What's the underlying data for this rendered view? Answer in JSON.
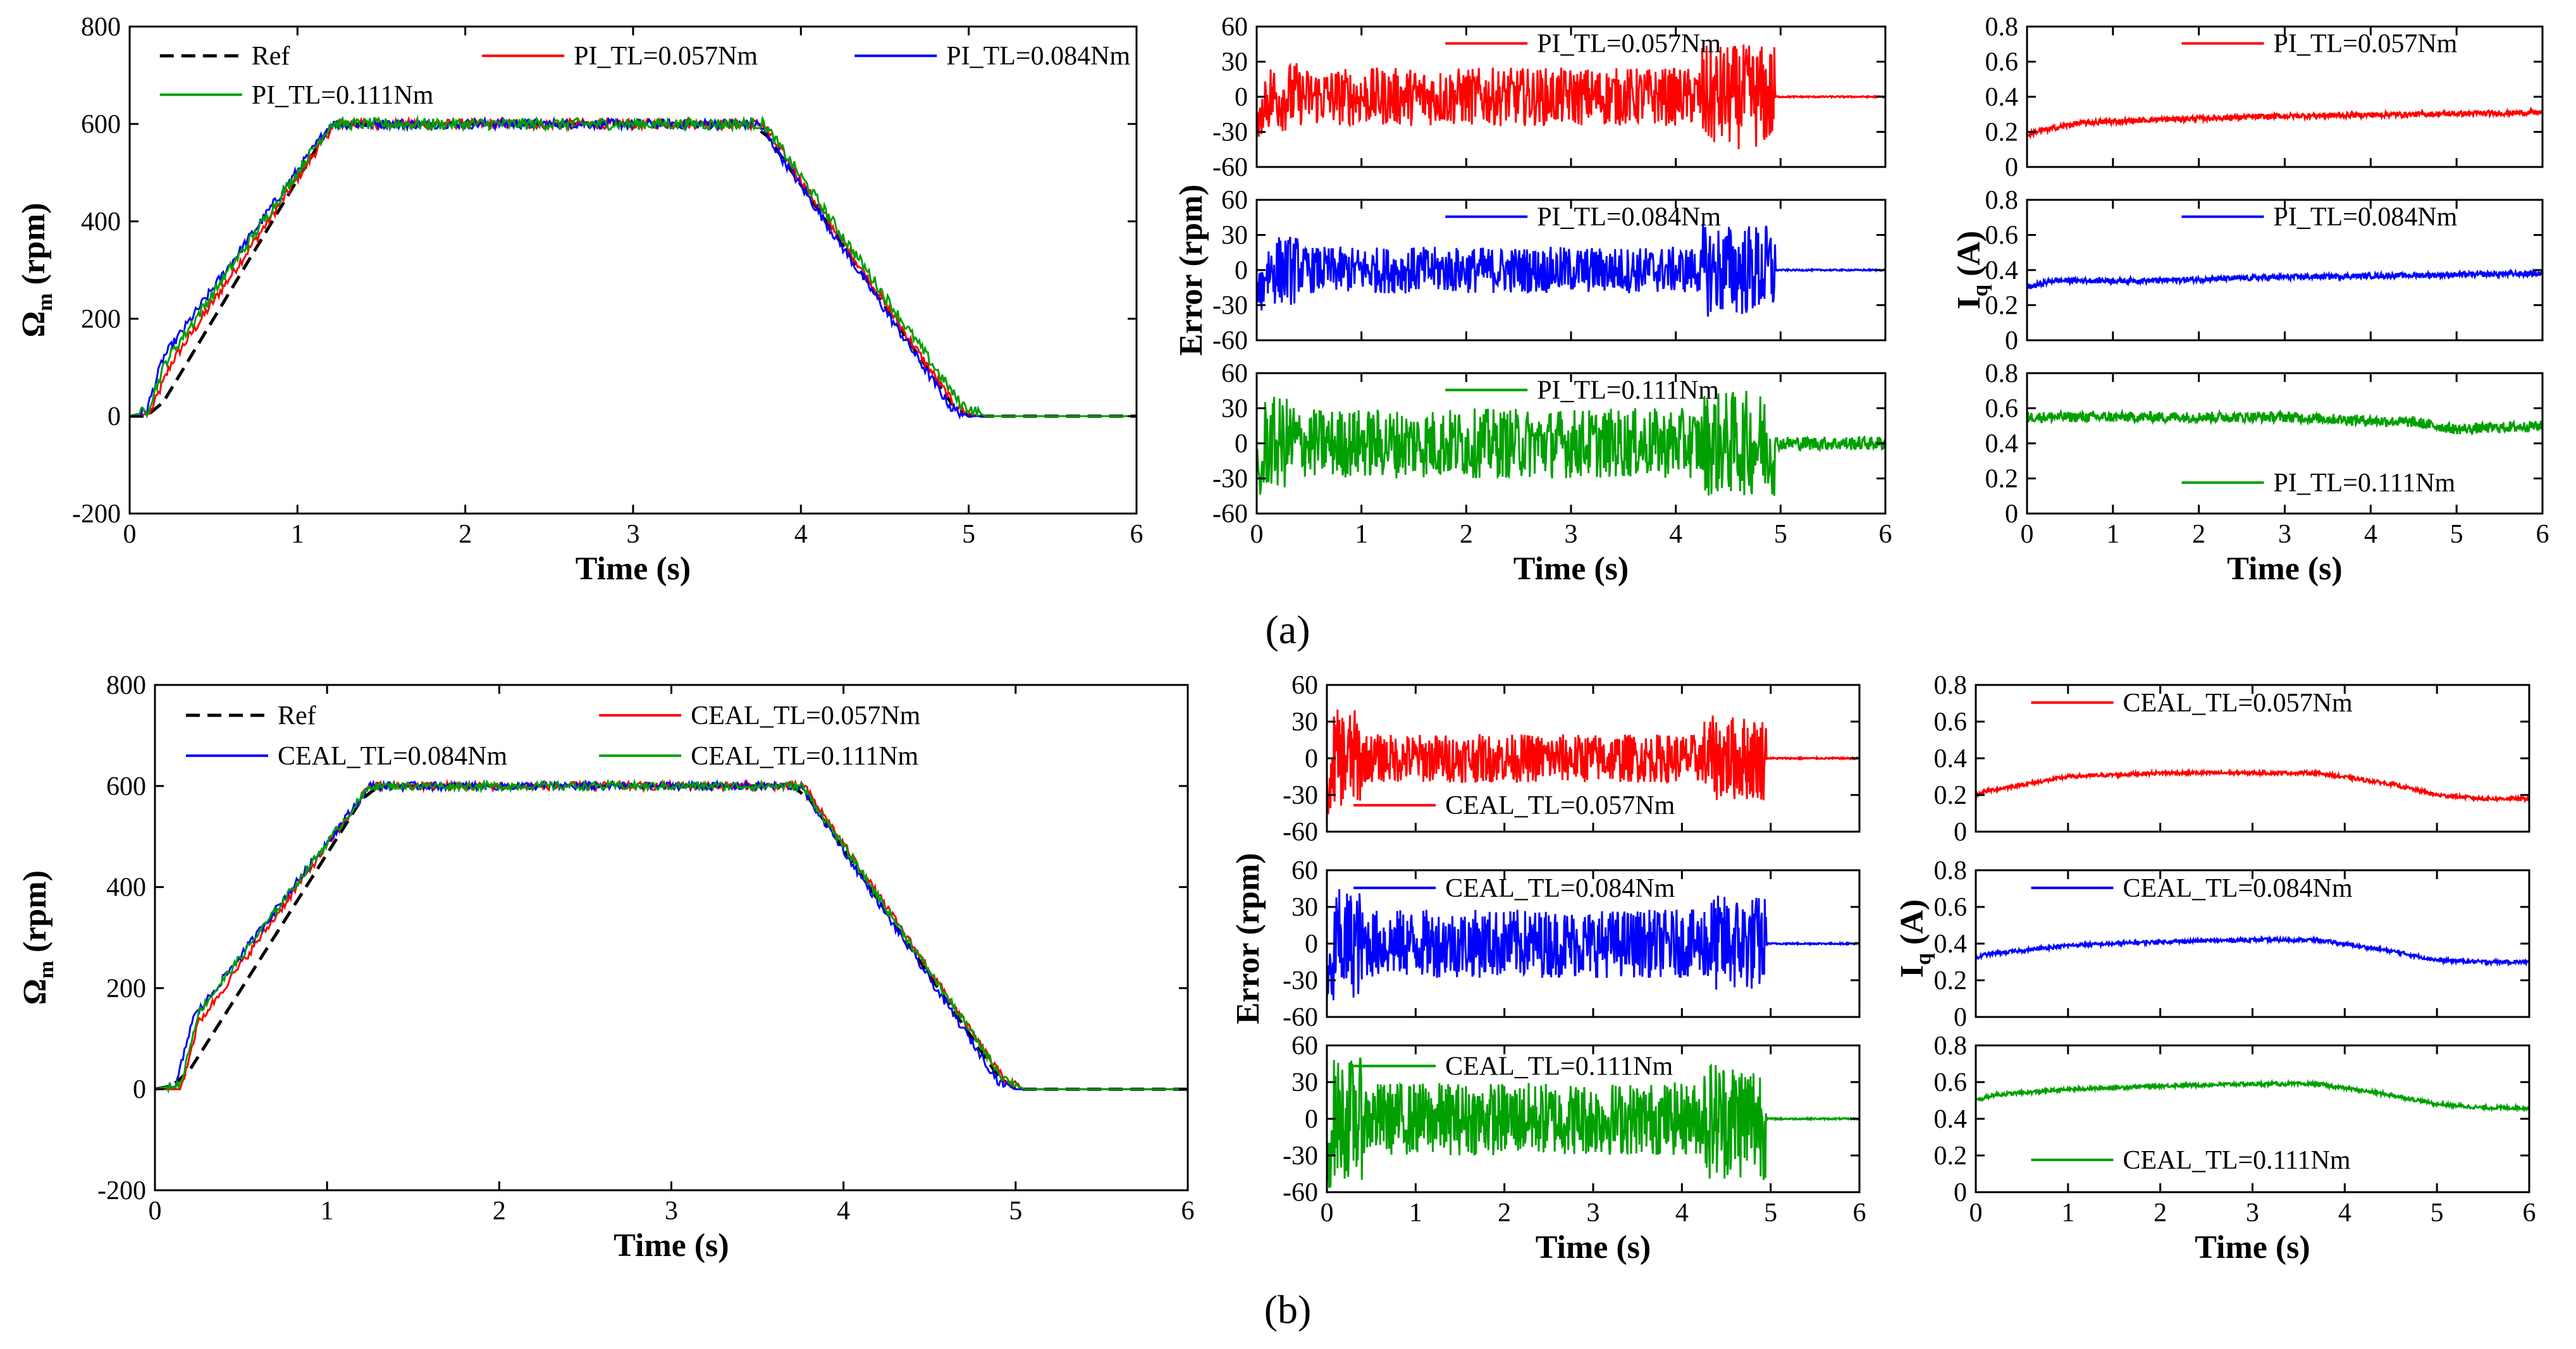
{
  "figure": {
    "caption_a": "(a)",
    "caption_b": "(b)"
  },
  "colors": {
    "ref": "#000000",
    "tl057": "#ff0000",
    "tl084": "#0000ff",
    "tl111": "#00a000"
  },
  "chart_data": [
    {
      "id": "a_speed",
      "type": "line",
      "panel": "a",
      "xlabel": "Time (s)",
      "ylabel": "Ω_m (rpm)",
      "ylabel_main": "Ω",
      "ylabel_sub": "m",
      "ylabel_unit": " (rpm)",
      "xlim": [
        0,
        6
      ],
      "ylim": [
        -200,
        800
      ],
      "xticks": [
        0,
        1,
        2,
        3,
        4,
        5,
        6
      ],
      "yticks": [
        -200,
        0,
        200,
        400,
        600,
        800
      ],
      "series": [
        {
          "name": "Ref",
          "color": "#000000",
          "dash": true,
          "x": [
            0,
            0.15,
            1.2,
            3.75,
            4.95,
            6
          ],
          "y": [
            0,
            0,
            600,
            600,
            0,
            0
          ]
        },
        {
          "name": "PI_TL=0.057Nm",
          "color": "#ff0000",
          "noise": 10,
          "x": [
            0,
            0.12,
            0.25,
            1.22,
            3.77,
            4.92,
            5.05,
            6
          ],
          "y": [
            0,
            5,
            110,
            600,
            600,
            20,
            0,
            0
          ]
        },
        {
          "name": "PI_TL=0.084Nm",
          "color": "#0000ff",
          "noise": 10,
          "x": [
            0,
            0.1,
            0.2,
            1.2,
            3.75,
            4.9,
            5.0,
            6
          ],
          "y": [
            0,
            10,
            120,
            600,
            600,
            15,
            0,
            0
          ]
        },
        {
          "name": "PI_TL=0.111Nm",
          "color": "#00a000",
          "noise": 12,
          "x": [
            0,
            0.1,
            0.22,
            1.2,
            3.78,
            4.95,
            5.1,
            6
          ],
          "y": [
            0,
            8,
            115,
            600,
            600,
            25,
            0,
            0
          ]
        }
      ],
      "legend": [
        {
          "label": "Ref",
          "series": 0
        },
        {
          "label": "PI_TL=0.057Nm",
          "series": 1
        },
        {
          "label": "PI_TL=0.084Nm",
          "series": 2
        },
        {
          "label": "PI_TL=0.111Nm",
          "series": 3
        }
      ]
    },
    {
      "id": "a_err1",
      "type": "line",
      "panel": "a",
      "ylim": [
        -60,
        60
      ],
      "xticks": [],
      "yticks": [
        -60,
        -30,
        0,
        30,
        60
      ],
      "xlim": [
        0,
        6
      ],
      "series": [
        {
          "name": "PI_TL=0.057Nm",
          "color": "#ff0000",
          "kind": "error",
          "amp": [
            30,
            25,
            45
          ],
          "tend": 4.95
        }
      ],
      "legend": [
        {
          "label": "PI_TL=0.057Nm",
          "series": 0
        }
      ]
    },
    {
      "id": "a_err2",
      "type": "line",
      "panel": "a",
      "ylim": [
        -60,
        60
      ],
      "xticks": [],
      "yticks": [
        -60,
        -30,
        0,
        30,
        60
      ],
      "xlim": [
        0,
        6
      ],
      "series": [
        {
          "name": "PI_TL=0.084Nm",
          "color": "#0000ff",
          "kind": "error",
          "amp": [
            30,
            20,
            40
          ],
          "tend": 4.95
        }
      ],
      "legend": [
        {
          "label": "PI_TL=0.084Nm",
          "series": 0
        }
      ]
    },
    {
      "id": "a_err3",
      "type": "line",
      "panel": "a",
      "ylim": [
        -60,
        60
      ],
      "xlabel": "Time (s)",
      "xticks": [
        0,
        1,
        2,
        3,
        4,
        5,
        6
      ],
      "yticks": [
        -60,
        -30,
        0,
        30,
        60
      ],
      "xlim": [
        0,
        6
      ],
      "series": [
        {
          "name": "PI_TL=0.111Nm",
          "color": "#00a000",
          "kind": "error",
          "amp": [
            40,
            30,
            45
          ],
          "tend": 4.95,
          "tailamp": 6
        }
      ],
      "legend": [
        {
          "label": "PI_TL=0.111Nm",
          "series": 0
        }
      ]
    },
    {
      "id": "a_iq1",
      "type": "line",
      "panel": "a",
      "ylim": [
        0,
        0.8
      ],
      "xticks": [],
      "yticks": [
        0,
        0.2,
        0.4,
        0.6,
        0.8
      ],
      "xlim": [
        0,
        6
      ],
      "series": [
        {
          "name": "PI_TL=0.057Nm",
          "color": "#ff0000",
          "kind": "current",
          "x": [
            0,
            0.1,
            0.6,
            1.5,
            3.0,
            4.5,
            6
          ],
          "y": [
            0.18,
            0.2,
            0.25,
            0.27,
            0.29,
            0.3,
            0.31
          ],
          "noise": 0.03
        }
      ],
      "legend": [
        {
          "label": "PI_TL=0.057Nm",
          "series": 0
        }
      ]
    },
    {
      "id": "a_iq2",
      "type": "line",
      "panel": "a",
      "ylim": [
        0,
        0.8
      ],
      "xticks": [],
      "yticks": [
        0,
        0.2,
        0.4,
        0.6,
        0.8
      ],
      "xlim": [
        0,
        6
      ],
      "series": [
        {
          "name": "PI_TL=0.084Nm",
          "color": "#0000ff",
          "kind": "current",
          "x": [
            0,
            0.3,
            1.5,
            3.0,
            4.5,
            6
          ],
          "y": [
            0.3,
            0.34,
            0.34,
            0.36,
            0.37,
            0.38
          ],
          "noise": 0.03
        }
      ],
      "legend": [
        {
          "label": "PI_TL=0.084Nm",
          "series": 0
        }
      ]
    },
    {
      "id": "a_iq3",
      "type": "line",
      "panel": "a",
      "ylim": [
        0,
        0.8
      ],
      "xlabel": "Time (s)",
      "xticks": [
        0,
        1,
        2,
        3,
        4,
        5,
        6
      ],
      "yticks": [
        0,
        0.2,
        0.4,
        0.6,
        0.8
      ],
      "xlim": [
        0,
        6
      ],
      "series": [
        {
          "name": "PI_TL=0.111Nm",
          "color": "#00a000",
          "kind": "current",
          "x": [
            0,
            1.5,
            3.0,
            4.5,
            5.0,
            6
          ],
          "y": [
            0.55,
            0.55,
            0.55,
            0.52,
            0.48,
            0.5
          ],
          "noise": 0.06
        }
      ],
      "legend": [
        {
          "label": "PI_TL=0.111Nm",
          "series": 0
        }
      ]
    },
    {
      "id": "b_speed",
      "type": "line",
      "panel": "b",
      "xlabel": "Time (s)",
      "ylabel": "Ω_m (rpm)",
      "ylabel_main": "Ω",
      "ylabel_sub": "m",
      "ylabel_unit": " (rpm)",
      "xlim": [
        0,
        6
      ],
      "ylim": [
        -200,
        800
      ],
      "xticks": [
        0,
        1,
        2,
        3,
        4,
        5,
        6
      ],
      "yticks": [
        -200,
        0,
        200,
        400,
        600,
        800
      ],
      "series": [
        {
          "name": "Ref",
          "color": "#000000",
          "dash": true,
          "x": [
            0,
            0.15,
            1.25,
            3.75,
            4.95,
            6
          ],
          "y": [
            0,
            10,
            600,
            600,
            0,
            0
          ]
        },
        {
          "name": "CEAL_TL=0.057Nm",
          "color": "#ff0000",
          "noise": 8,
          "x": [
            0,
            0.15,
            0.25,
            1.25,
            3.77,
            4.93,
            5.05,
            6
          ],
          "y": [
            0,
            0,
            130,
            600,
            600,
            20,
            0,
            0
          ]
        },
        {
          "name": "CEAL_TL=0.084Nm",
          "color": "#0000ff",
          "noise": 8,
          "x": [
            0,
            0.12,
            0.22,
            1.25,
            3.75,
            4.9,
            5.0,
            6
          ],
          "y": [
            0,
            5,
            140,
            600,
            600,
            15,
            0,
            0
          ]
        },
        {
          "name": "CEAL_TL=0.111Nm",
          "color": "#00a000",
          "noise": 8,
          "x": [
            0,
            0.15,
            0.25,
            1.25,
            3.76,
            4.92,
            5.05,
            6
          ],
          "y": [
            0,
            10,
            150,
            600,
            600,
            25,
            0,
            0
          ]
        }
      ],
      "legend": [
        {
          "label": "Ref",
          "series": 0
        },
        {
          "label": "CEAL_TL=0.057Nm",
          "series": 1
        },
        {
          "label": "CEAL_TL=0.084Nm",
          "series": 2
        },
        {
          "label": "CEAL_TL=0.111Nm",
          "series": 3
        }
      ]
    },
    {
      "id": "b_err1",
      "type": "line",
      "panel": "b",
      "ylim": [
        -60,
        60
      ],
      "xticks": [],
      "yticks": [
        -60,
        -30,
        0,
        30,
        60
      ],
      "xlim": [
        0,
        6
      ],
      "series": [
        {
          "name": "CEAL_TL=0.057Nm",
          "color": "#ff0000",
          "kind": "error",
          "amp": [
            40,
            20,
            35
          ],
          "tend": 4.95
        }
      ],
      "legend": [
        {
          "label": "CEAL_TL=0.057Nm",
          "series": 0
        }
      ]
    },
    {
      "id": "b_err2",
      "type": "line",
      "panel": "b",
      "ylim": [
        -60,
        60
      ],
      "xticks": [],
      "yticks": [
        -60,
        -30,
        0,
        30,
        60
      ],
      "xlim": [
        0,
        6
      ],
      "series": [
        {
          "name": "CEAL_TL=0.084Nm",
          "color": "#0000ff",
          "kind": "error",
          "amp": [
            45,
            28,
            40
          ],
          "tend": 4.95
        }
      ],
      "legend": [
        {
          "label": "CEAL_TL=0.084Nm",
          "series": 0
        }
      ]
    },
    {
      "id": "b_err3",
      "type": "line",
      "panel": "b",
      "ylim": [
        -60,
        60
      ],
      "xlabel": "Time (s)",
      "xticks": [
        0,
        1,
        2,
        3,
        4,
        5,
        6
      ],
      "yticks": [
        -60,
        -30,
        0,
        30,
        60
      ],
      "xlim": [
        0,
        6
      ],
      "series": [
        {
          "name": "CEAL_TL=0.111Nm",
          "color": "#00a000",
          "kind": "error",
          "amp": [
            50,
            30,
            50
          ],
          "tend": 4.95
        }
      ],
      "legend": [
        {
          "label": "CEAL_TL=0.111Nm",
          "series": 0
        }
      ]
    },
    {
      "id": "b_iq1",
      "type": "line",
      "panel": "b",
      "ylim": [
        0,
        0.8
      ],
      "xticks": [],
      "yticks": [
        0,
        0.2,
        0.4,
        0.6,
        0.8
      ],
      "xlim": [
        0,
        6
      ],
      "series": [
        {
          "name": "CEAL_TL=0.057Nm",
          "color": "#ff0000",
          "kind": "current",
          "x": [
            0,
            0.1,
            1.0,
            2.0,
            3.0,
            3.7,
            4.5,
            5.0,
            5.5,
            6
          ],
          "y": [
            0.2,
            0.22,
            0.3,
            0.32,
            0.32,
            0.32,
            0.26,
            0.2,
            0.18,
            0.18
          ],
          "noise": 0.02
        }
      ],
      "legend": [
        {
          "label": "CEAL_TL=0.057Nm",
          "series": 0
        }
      ]
    },
    {
      "id": "b_iq2",
      "type": "line",
      "panel": "b",
      "ylim": [
        0,
        0.8
      ],
      "xticks": [],
      "yticks": [
        0,
        0.2,
        0.4,
        0.6,
        0.8
      ],
      "xlim": [
        0,
        6
      ],
      "series": [
        {
          "name": "CEAL_TL=0.084Nm",
          "color": "#0000ff",
          "kind": "current",
          "x": [
            0,
            0.1,
            1.0,
            2.0,
            3.0,
            3.7,
            4.5,
            5.0,
            5.5,
            6
          ],
          "y": [
            0.32,
            0.34,
            0.39,
            0.41,
            0.42,
            0.42,
            0.36,
            0.31,
            0.3,
            0.3
          ],
          "noise": 0.02
        }
      ],
      "legend": [
        {
          "label": "CEAL_TL=0.084Nm",
          "series": 0
        }
      ]
    },
    {
      "id": "b_iq3",
      "type": "line",
      "panel": "b",
      "ylim": [
        0,
        0.8
      ],
      "xlabel": "Time (s)",
      "xticks": [
        0,
        1,
        2,
        3,
        4,
        5,
        6
      ],
      "yticks": [
        0,
        0.2,
        0.4,
        0.6,
        0.8
      ],
      "xlim": [
        0,
        6
      ],
      "series": [
        {
          "name": "CEAL_TL=0.111Nm",
          "color": "#00a000",
          "kind": "current",
          "x": [
            0,
            0.2,
            1.0,
            2.0,
            3.0,
            3.7,
            4.5,
            5.0,
            5.5,
            6
          ],
          "y": [
            0.5,
            0.53,
            0.56,
            0.58,
            0.59,
            0.59,
            0.53,
            0.48,
            0.46,
            0.46
          ],
          "noise": 0.02
        }
      ],
      "legend": [
        {
          "label": "CEAL_TL=0.111Nm",
          "series": 0
        }
      ]
    }
  ],
  "shared_labels": {
    "error_ylabel": "Error (rpm)",
    "iq_ylabel_main": "I",
    "iq_ylabel_sub": "q",
    "iq_ylabel_unit": " (A)"
  }
}
